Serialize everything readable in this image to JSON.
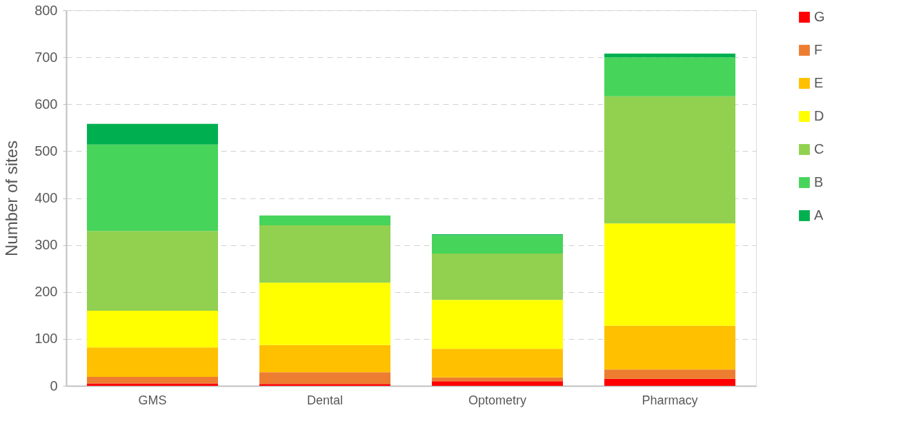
{
  "chart_data": {
    "type": "bar",
    "stacked": true,
    "ylabel": "Number of sites",
    "categories": [
      "GMS",
      "Dental",
      "Optometry",
      "Pharmacy"
    ],
    "series": [
      {
        "name": "G",
        "color": "#ff0000",
        "values": [
          5,
          4,
          10,
          15
        ]
      },
      {
        "name": "F",
        "color": "#ed7d31",
        "values": [
          14,
          25,
          8,
          20
        ]
      },
      {
        "name": "E",
        "color": "#ffc000",
        "values": [
          63,
          58,
          61,
          93
        ]
      },
      {
        "name": "D",
        "color": "#ffff00",
        "values": [
          78,
          133,
          104,
          218
        ]
      },
      {
        "name": "C",
        "color": "#92d050",
        "values": [
          170,
          122,
          99,
          271
        ]
      },
      {
        "name": "B",
        "color": "#47d45a",
        "values": [
          184,
          21,
          39,
          83
        ]
      },
      {
        "name": "A",
        "color": "#00b050",
        "values": [
          44,
          0,
          2,
          8
        ]
      }
    ],
    "ylim": [
      0,
      800
    ],
    "yticks": [
      0,
      100,
      200,
      300,
      400,
      500,
      600,
      700,
      800
    ],
    "grid": "y",
    "legend": "right"
  }
}
